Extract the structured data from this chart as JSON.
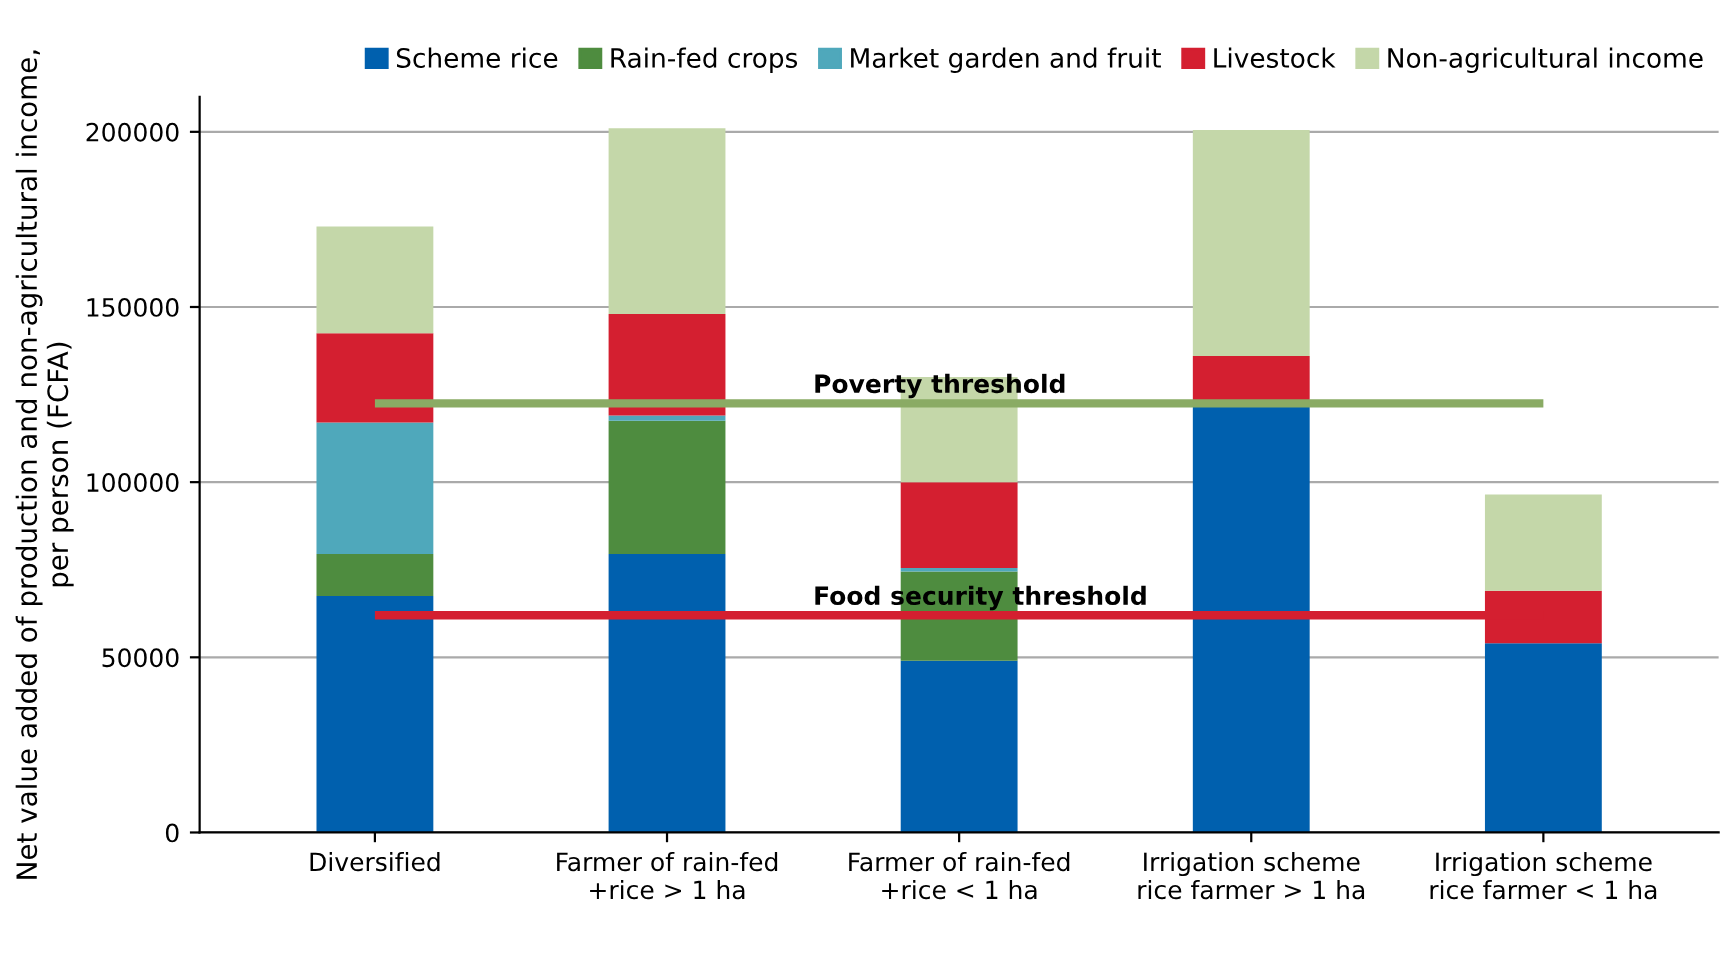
{
  "chart_data": {
    "type": "bar",
    "stacked": true,
    "ylabel": "Net value added of production and non-agricultural income,\nper person (FCFA)",
    "categories": [
      "Diversified",
      "Farmer of rain-fed\n+rice > 1 ha",
      "Farmer of rain-fed\n+rice < 1 ha",
      "Irrigation scheme\nrice farmer > 1 ha",
      "Irrigation scheme\nrice farmer < 1 ha"
    ],
    "series": [
      {
        "name": "Scheme rice",
        "color": "#0060ae",
        "values": [
          67500,
          79500,
          49000,
          122000,
          54000
        ]
      },
      {
        "name": "Rain-fed crops",
        "color": "#4e8c3f",
        "values": [
          12000,
          38000,
          25500,
          0,
          0
        ]
      },
      {
        "name": "Market garden and fruit",
        "color": "#4fa8bb",
        "values": [
          37500,
          1500,
          1000,
          0,
          0
        ]
      },
      {
        "name": "Livestock",
        "color": "#d41f30",
        "values": [
          25500,
          29000,
          24500,
          14000,
          15000
        ]
      },
      {
        "name": "Non-agricultural income",
        "color": "#c4d7a9",
        "values": [
          30500,
          53000,
          30000,
          64500,
          27500
        ]
      }
    ],
    "ref_lines": [
      {
        "axis": "y",
        "value": 122500,
        "label": "Poverty threshold",
        "color": "#8aab64"
      },
      {
        "axis": "y",
        "value": 62000,
        "label": "Food security threshold",
        "color": "#d41f30"
      }
    ],
    "ylim": [
      0,
      210000
    ],
    "yticks": [
      0,
      50000,
      100000,
      150000,
      200000
    ],
    "grid": "y",
    "legend": "top"
  }
}
